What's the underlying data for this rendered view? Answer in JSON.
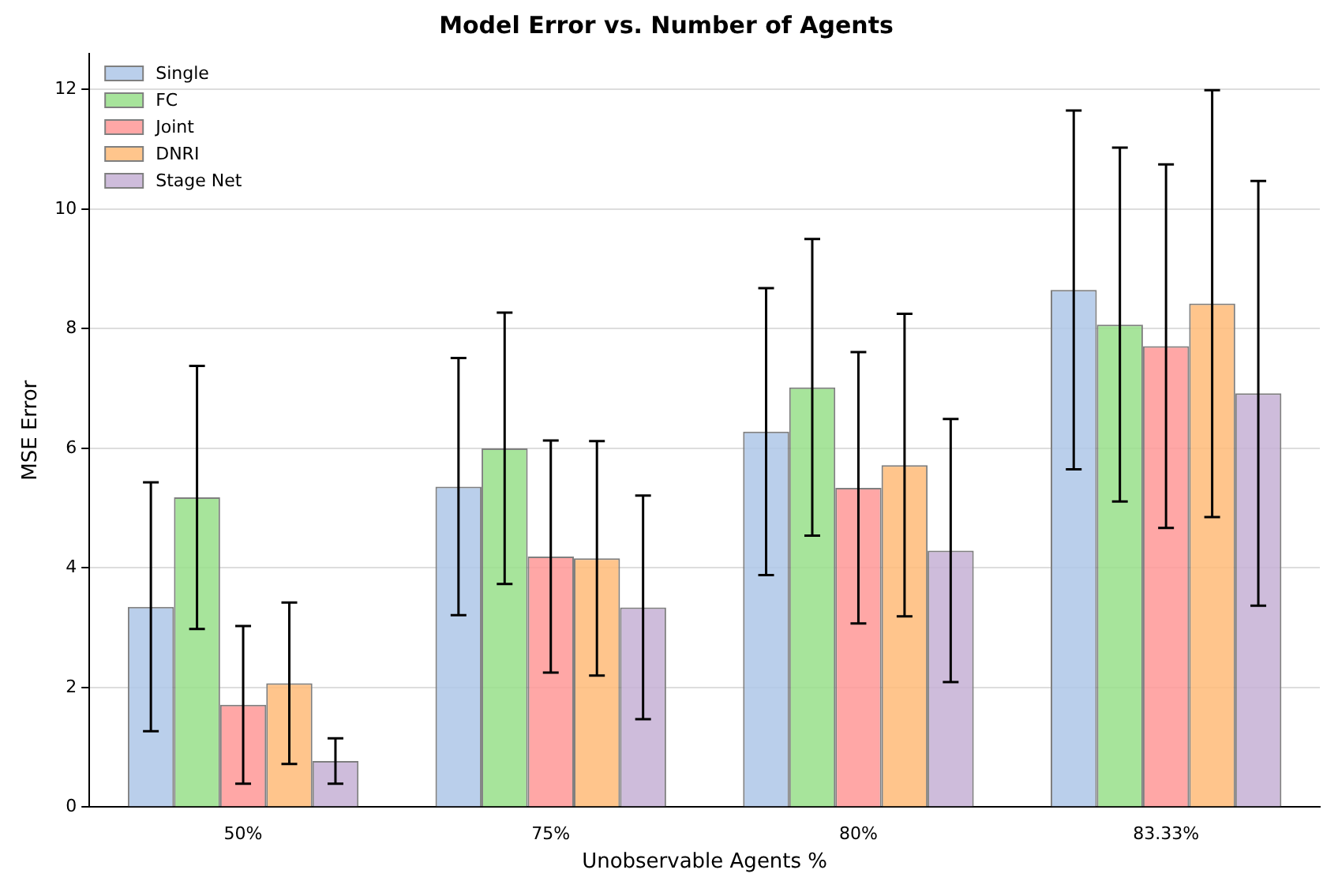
{
  "chart_data": {
    "type": "bar",
    "title": "Model Error vs. Number of Agents",
    "xlabel": "Unobservable Agents %",
    "ylabel": "MSE Error",
    "categories": [
      "50%",
      "75%",
      "80%",
      "83.33%"
    ],
    "series": [
      {
        "name": "Single",
        "color": "#aec7e8",
        "values": [
          3.35,
          5.36,
          6.28,
          8.65
        ],
        "errors": [
          2.08,
          2.15,
          2.4,
          3.0
        ]
      },
      {
        "name": "FC",
        "color": "#98df8a",
        "values": [
          5.18,
          6.0,
          7.02,
          8.07
        ],
        "errors": [
          2.2,
          2.27,
          2.48,
          2.96
        ]
      },
      {
        "name": "Joint",
        "color": "#ff9896",
        "values": [
          1.71,
          4.19,
          5.34,
          7.71
        ],
        "errors": [
          1.32,
          1.94,
          2.27,
          3.04
        ]
      },
      {
        "name": "DNRI",
        "color": "#ffbb78",
        "values": [
          2.07,
          4.16,
          5.72,
          8.42
        ],
        "errors": [
          1.35,
          1.96,
          2.53,
          3.57
        ]
      },
      {
        "name": "Stage Net",
        "color": "#c5b0d5",
        "values": [
          0.77,
          3.34,
          4.29,
          6.92
        ],
        "errors": [
          0.38,
          1.87,
          2.2,
          3.55
        ]
      }
    ],
    "ylim": [
      0,
      12.6
    ],
    "yticks": [
      0,
      2,
      4,
      6,
      8,
      10,
      12
    ],
    "grid": "y",
    "legend": "top left"
  }
}
